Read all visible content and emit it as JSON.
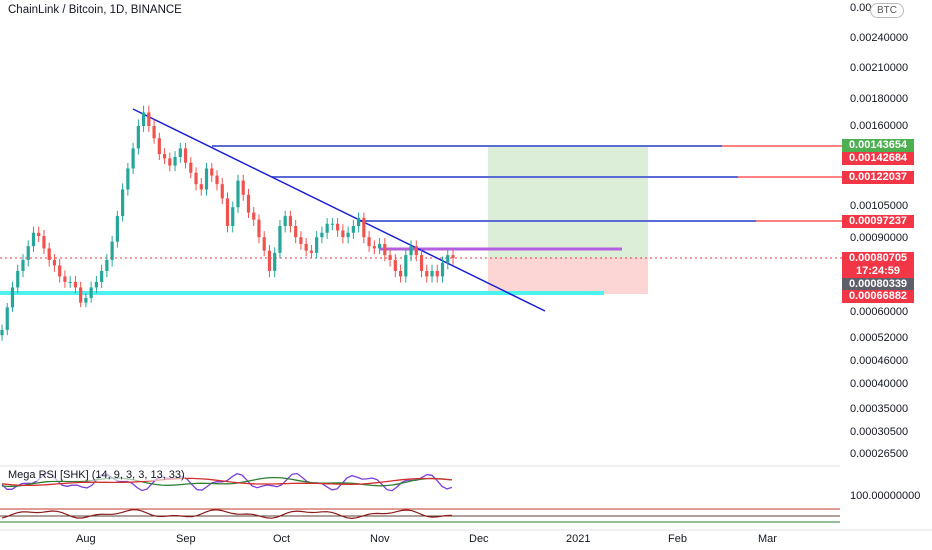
{
  "header": {
    "title": "ChainLink / Bitcoin, 1D, BINANCE",
    "quote_badge": "BTC"
  },
  "axis": {
    "top_tick": "0.00",
    "price_labels": [
      "0.00240000",
      "0.00210000",
      "0.00180000",
      "0.00160000",
      "0.00105000",
      "0.00090000",
      "0.00060000",
      "0.00052000",
      "0.00046000",
      "0.00040000",
      "0.00035000",
      "0.00030500",
      "0.00026500"
    ],
    "tags": {
      "green_target": "0.00143654",
      "red_1": "0.00142684",
      "red_2": "0.00122037",
      "red_3": "0.00097237",
      "last_price": "0.00080705",
      "countdown": "17:24:59",
      "gray_level": "0.00080339",
      "stop": "0.00066882"
    }
  },
  "indicator": {
    "title": "Mega RSI [SHK] (14, 9, 3, 3, 13, 33)",
    "value_label": "100.00000000"
  },
  "time_axis": [
    "Aug",
    "Sep",
    "Oct",
    "Nov",
    "Dec",
    "2021",
    "Feb",
    "Mar"
  ],
  "colors": {
    "up_candle": "#26a69a",
    "down_candle": "#ef5350",
    "trend_line": "#1a1fd6",
    "hline_blue": "#5a6bd6",
    "hline_red": "#ff0000",
    "hline_cyan": "#4df2ee",
    "hline_purple": "#b45ee0",
    "target_zone": "#dcedd8",
    "stop_zone": "#fbd6d5",
    "tag_green": "#4caf50",
    "tag_red": "#f23645"
  },
  "chart_data": {
    "type": "candlestick",
    "symbol": "ChainLink / Bitcoin",
    "interval": "1D",
    "close_series": [
      0.000545,
      0.00062,
      0.0007,
      0.00076,
      0.0008,
      0.00086,
      0.00092,
      0.000905,
      0.00085,
      0.0008,
      0.00078,
      0.00074,
      0.00072,
      0.00072,
      0.0007,
      0.00064,
      0.00066,
      0.0007,
      0.00072,
      0.00076,
      0.0008,
      0.00088,
      0.001,
      0.00115,
      0.00128,
      0.00142,
      0.0016,
      0.0017,
      0.0016,
      0.0015,
      0.00138,
      0.00135,
      0.0013,
      0.00136,
      0.00142,
      0.00132,
      0.00125,
      0.00118,
      0.00115,
      0.00128,
      0.00123,
      0.00118,
      0.0011,
      0.00095,
      0.00105,
      0.0012,
      0.00112,
      0.00102,
      0.00098,
      0.0009,
      0.00084,
      0.00076,
      0.00083,
      0.00095,
      0.001,
      0.00095,
      0.0009,
      0.00087,
      0.00084,
      0.00083,
      0.0009,
      0.00092,
      0.00096,
      0.00096,
      0.00093,
      0.0009,
      0.00092,
      0.00095,
      0.00099,
      0.0009,
      0.00086,
      0.00085,
      0.00087,
      0.00082,
      0.0008,
      0.00076,
      0.00074,
      0.00082,
      0.00086,
      0.00082,
      0.00076,
      0.00074,
      0.00076,
      0.00074,
      0.00079,
      0.00082,
      0.000807
    ],
    "levels": {
      "target": 0.00143654,
      "line_1": 0.00142684,
      "line_2": 0.00122037,
      "line_3": 0.00097237,
      "last": 0.00080705,
      "stop": 0.00066882
    }
  }
}
